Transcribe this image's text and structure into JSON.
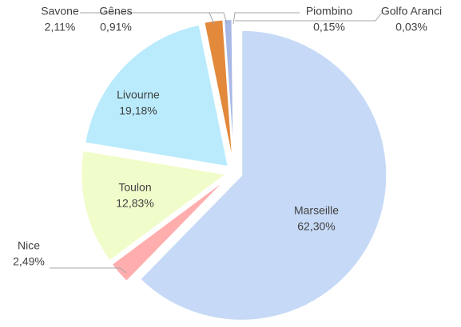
{
  "chart_data": {
    "type": "pie",
    "categories": [
      "Marseille",
      "Nice",
      "Toulon",
      "Livourne",
      "Savone",
      "Gênes",
      "Piombino",
      "Golfo Aranci"
    ],
    "values": [
      62.3,
      2.49,
      12.83,
      19.18,
      2.11,
      0.91,
      0.15,
      0.03
    ],
    "value_labels": [
      "62,30%",
      "2,49%",
      "12,83%",
      "19,18%",
      "2,11%",
      "0,91%",
      "0,15%",
      "0,03%"
    ],
    "colors": [
      "#c6d9f6",
      "#ffadad",
      "#f1fccb",
      "#b9ebfd",
      "#e2893b",
      "#a8b8e6",
      "#8fa3d9",
      "#7f8fbf"
    ]
  }
}
